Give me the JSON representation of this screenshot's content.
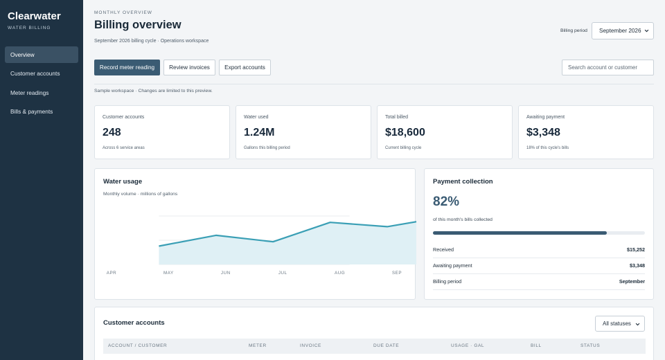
{
  "sidebar": {
    "brand": "Clearwater",
    "brand_sub": "WATER BILLING",
    "items": [
      {
        "label": "Overview",
        "active": true
      },
      {
        "label": "Customer accounts",
        "active": false
      },
      {
        "label": "Meter readings",
        "active": false
      },
      {
        "label": "Bills & payments",
        "active": false
      }
    ]
  },
  "header": {
    "eyebrow": "MONTHLY OVERVIEW",
    "title": "Billing overview",
    "subtitle": "September 2026 billing cycle · Operations workspace",
    "period_label": "Billing period",
    "period_value": "September 2026"
  },
  "toolbar": {
    "record_label": "Record meter reading",
    "review_label": "Review invoices",
    "export_label": "Export accounts",
    "search_placeholder": "Search account or customer"
  },
  "notice": "Sample workspace · Changes are limited to this preview.",
  "stats": [
    {
      "label": "Customer accounts",
      "value": "248",
      "note": "Across 6 service areas"
    },
    {
      "label": "Water used",
      "value": "1.24M",
      "note": "Gallons this billing period"
    },
    {
      "label": "Total billed",
      "value": "$18,600",
      "note": "Current billing cycle"
    },
    {
      "label": "Awaiting payment",
      "value": "$3,348",
      "note": "18% of this cycle's bills"
    }
  ],
  "usage": {
    "title": "Water usage",
    "subtitle": "Monthly volume · millions of gallons"
  },
  "chart_data": {
    "type": "area",
    "categories": [
      "APR",
      "MAY",
      "JUN",
      "JUL",
      "AUG",
      "SEP"
    ],
    "values": [
      0.97,
      1.07,
      1.01,
      1.19,
      1.15,
      1.24
    ],
    "ylim": [
      0.8,
      1.3
    ],
    "grid": true,
    "color": "#3a9fb5"
  },
  "collection": {
    "title": "Payment collection",
    "percent": "82%",
    "percent_value": 82,
    "note": "of this month's bills collected",
    "rows": [
      {
        "label": "Received",
        "value": "$15,252"
      },
      {
        "label": "Awaiting payment",
        "value": "$3,348"
      },
      {
        "label": "Billing period",
        "value": "September"
      }
    ]
  },
  "accounts": {
    "title": "Customer accounts",
    "filter_value": "All statuses",
    "columns": [
      "ACCOUNT / CUSTOMER",
      "METER",
      "INVOICE",
      "DUE DATE",
      "USAGE · GAL",
      "BILL",
      "STATUS"
    ]
  },
  "colors": {
    "sidebar": "#1e3243",
    "accent": "#3a5b73",
    "chart": "#3a9fb5"
  }
}
